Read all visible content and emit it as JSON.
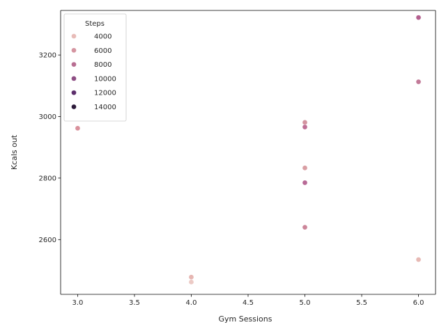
{
  "chart_data": {
    "type": "scatter",
    "title": "",
    "xlabel": "Gym Sessions",
    "ylabel": "Kcals out",
    "xlim": [
      2.85,
      6.15
    ],
    "ylim": [
      2422,
      3345
    ],
    "xticks": [
      3.0,
      3.5,
      4.0,
      4.5,
      5.0,
      5.5,
      6.0
    ],
    "xtick_labels": [
      "3.0",
      "3.5",
      "4.0",
      "4.5",
      "5.0",
      "5.5",
      "6.0"
    ],
    "yticks": [
      2600,
      2800,
      3000,
      3200
    ],
    "ytick_labels": [
      "2600",
      "2800",
      "3000",
      "3200"
    ],
    "grid": false,
    "legend": {
      "title": "Steps",
      "placement": "top-left",
      "entries": [
        {
          "label": "4000",
          "color": "#e8bcb8"
        },
        {
          "label": "6000",
          "color": "#d595a1"
        },
        {
          "label": "8000",
          "color": "#b86e92"
        },
        {
          "label": "10000",
          "color": "#8e4e84"
        },
        {
          "label": "12000",
          "color": "#5d2f6c"
        },
        {
          "label": "14000",
          "color": "#2c1a3a"
        }
      ]
    },
    "points": [
      {
        "x": 6.0,
        "y": 3322,
        "steps": 8600,
        "color": "#b4608f"
      },
      {
        "x": 6.0,
        "y": 3113,
        "steps": 7400,
        "color": "#c27a98"
      },
      {
        "x": 3.0,
        "y": 2962,
        "steps": 5600,
        "color": "#d9919c"
      },
      {
        "x": 5.0,
        "y": 2981,
        "steps": 6000,
        "color": "#d494a0"
      },
      {
        "x": 5.0,
        "y": 2966,
        "steps": 7600,
        "color": "#bf6f96"
      },
      {
        "x": 5.0,
        "y": 2833,
        "steps": 5400,
        "color": "#d99ea3"
      },
      {
        "x": 5.0,
        "y": 2785,
        "steps": 8000,
        "color": "#b86a96"
      },
      {
        "x": 5.0,
        "y": 2640,
        "steps": 6200,
        "color": "#cc8599"
      },
      {
        "x": 6.0,
        "y": 2535,
        "steps": 4200,
        "color": "#e7b9b4"
      },
      {
        "x": 4.0,
        "y": 2478,
        "steps": 4400,
        "color": "#e6b6b2"
      },
      {
        "x": 4.0,
        "y": 2462,
        "steps": 3800,
        "color": "#eccac5"
      }
    ]
  }
}
